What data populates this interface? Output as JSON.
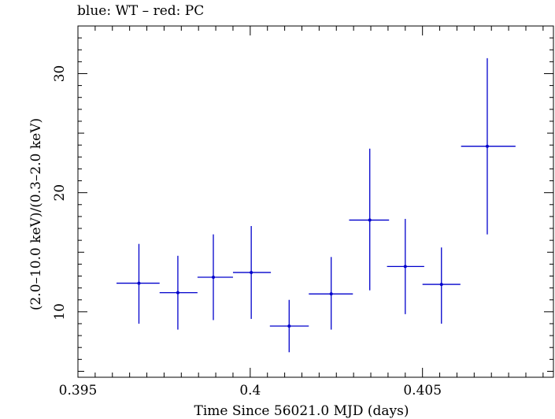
{
  "chart_data": {
    "type": "scatter",
    "title": "blue: WT – red: PC",
    "xlabel": "Time Since 56021.0 MJD (days)",
    "ylabel": "(2.0–10.0 keV)/(0.3–2.0 keV)",
    "xlim": [
      0.395,
      0.4088
    ],
    "ylim": [
      4.5,
      34.0
    ],
    "xticks": [
      0.395,
      0.4,
      0.405
    ],
    "xtick_labels": [
      "0.395",
      "0.4",
      "0.405"
    ],
    "yticks": [
      10,
      20,
      30
    ],
    "ytick_labels": [
      "10",
      "20",
      "30"
    ],
    "grid": false,
    "colors": {
      "WT": "#0000cc",
      "PC": "#cc0000"
    },
    "series": [
      {
        "name": "WT",
        "points": [
          {
            "x": 0.39677,
            "y": 12.4,
            "xlo": 0.39612,
            "xhi": 0.39737,
            "ylo": 9.0,
            "yhi": 15.7
          },
          {
            "x": 0.3979,
            "y": 11.6,
            "xlo": 0.39737,
            "xhi": 0.39847,
            "ylo": 8.5,
            "yhi": 14.7
          },
          {
            "x": 0.39893,
            "y": 12.9,
            "xlo": 0.39847,
            "xhi": 0.3995,
            "ylo": 9.3,
            "yhi": 16.5
          },
          {
            "x": 0.40003,
            "y": 13.3,
            "xlo": 0.3995,
            "xhi": 0.4006,
            "ylo": 9.4,
            "yhi": 17.2
          },
          {
            "x": 0.40113,
            "y": 8.8,
            "xlo": 0.40057,
            "xhi": 0.4017,
            "ylo": 6.6,
            "yhi": 11.0
          },
          {
            "x": 0.40235,
            "y": 11.5,
            "xlo": 0.4017,
            "xhi": 0.40298,
            "ylo": 8.5,
            "yhi": 14.6
          },
          {
            "x": 0.40347,
            "y": 17.7,
            "xlo": 0.40287,
            "xhi": 0.40403,
            "ylo": 11.8,
            "yhi": 23.7
          },
          {
            "x": 0.4045,
            "y": 13.8,
            "xlo": 0.40397,
            "xhi": 0.40505,
            "ylo": 9.8,
            "yhi": 17.8
          },
          {
            "x": 0.40555,
            "y": 12.3,
            "xlo": 0.405,
            "xhi": 0.4061,
            "ylo": 9.0,
            "yhi": 15.4
          },
          {
            "x": 0.40688,
            "y": 23.9,
            "xlo": 0.40612,
            "xhi": 0.4077,
            "ylo": 16.5,
            "yhi": 31.3
          }
        ]
      }
    ]
  }
}
